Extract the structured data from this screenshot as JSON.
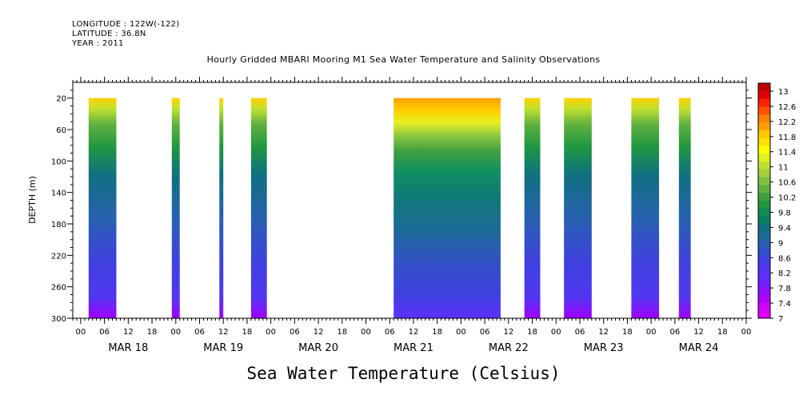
{
  "header": {
    "longitude": "LONGITUDE : 122W(-122)",
    "latitude": "LATITUDE : 36.8N",
    "year": "YEAR : 2011"
  },
  "chart_data": {
    "type": "heatmap",
    "title": "Hourly Gridded MBARI Mooring M1 Sea Water Temperature and Salinity Observations",
    "xlabel": "Sea Water Temperature (Celsius)",
    "ylabel": "DEPTH (m)",
    "xlim_hours_from_mar18_00": [
      -2,
      168
    ],
    "ylim": [
      300,
      0
    ],
    "y_ticks": [
      20,
      60,
      100,
      140,
      180,
      220,
      260,
      300
    ],
    "hour_tick_labels": [
      "00",
      "06",
      "12",
      "18"
    ],
    "day_labels": [
      "MAR 18",
      "MAR 19",
      "MAR 20",
      "MAR 21",
      "MAR 22",
      "MAR 23",
      "MAR 24"
    ],
    "colorbar": {
      "ticks": [
        13,
        12.6,
        12.2,
        11.8,
        11.4,
        11,
        10.6,
        10.2,
        9.8,
        9.4,
        9,
        8.6,
        8.2,
        7.8,
        7.4,
        7
      ],
      "colors": [
        "#c00000",
        "#e00000",
        "#ff2000",
        "#ff5000",
        "#ff8000",
        "#ffa000",
        "#ffc800",
        "#ffe000",
        "#ffff00",
        "#e0f020",
        "#c0e030",
        "#a0d040",
        "#80c040",
        "#60b040",
        "#40a040",
        "#209840",
        "#108a50",
        "#0a7e62",
        "#107080",
        "#1c6a98",
        "#2860b0",
        "#3450c8",
        "#4040e0",
        "#5038f0",
        "#6030ff",
        "#7020ff",
        "#9010ff",
        "#b000ff",
        "#d000ff",
        "#e000ff"
      ]
    },
    "segments": [
      {
        "start": 2,
        "end": 9
      },
      {
        "start": 23,
        "end": 25
      },
      {
        "start": 35,
        "end": 36
      },
      {
        "start": 43,
        "end": 47
      },
      {
        "start": 79,
        "end": 106
      },
      {
        "start": 112,
        "end": 116
      },
      {
        "start": 122,
        "end": 129
      },
      {
        "start": 139,
        "end": 146
      },
      {
        "start": 151,
        "end": 154
      }
    ]
  }
}
